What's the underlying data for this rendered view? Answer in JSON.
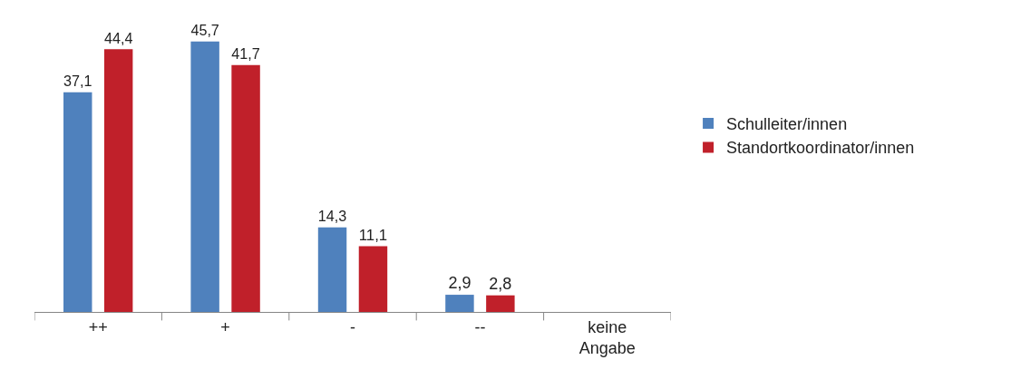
{
  "chart_data": {
    "type": "bar",
    "categories": [
      "++",
      "+",
      "-",
      "--",
      "keine Angabe"
    ],
    "series": [
      {
        "name": "Schulleiter/innen",
        "color": "#4f81bd",
        "values": [
          37.1,
          45.7,
          14.3,
          2.9,
          null
        ],
        "value_labels": [
          "37,1",
          "45,7",
          "14,3",
          "2,9",
          null
        ]
      },
      {
        "name": "Standortkoordinator/innen",
        "color": "#c0202a",
        "values": [
          44.4,
          41.7,
          11.1,
          2.8,
          null
        ],
        "value_labels": [
          "44,4",
          "41,7",
          "11,1",
          "2,8",
          null
        ]
      }
    ],
    "legend": "right"
  }
}
